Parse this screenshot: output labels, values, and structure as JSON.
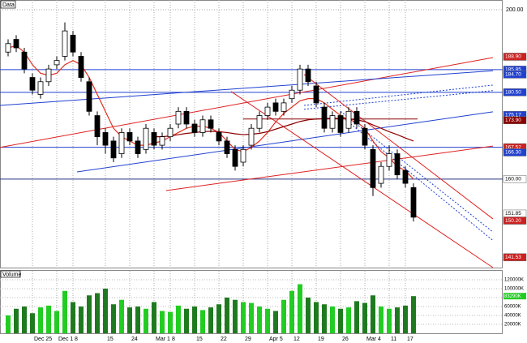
{
  "chart_data": {
    "type": "candlestick",
    "title": "Data",
    "volume_title": "Volume",
    "categories": [
      null,
      null,
      null,
      "Dec 25",
      null,
      null,
      "Dec 1",
      null,
      "8",
      null,
      null,
      null,
      "15",
      null,
      null,
      "24",
      null,
      null,
      "Mar 1",
      null,
      "8",
      null,
      null,
      "15",
      null,
      null,
      "22",
      null,
      null,
      "29",
      null,
      null,
      "Apr 5",
      null,
      null,
      "12",
      null,
      null,
      "19",
      null,
      null,
      "26",
      null,
      null,
      "Mar 4",
      null,
      null,
      "11",
      null,
      "17",
      null
    ],
    "open": [
      190,
      193,
      190,
      184,
      180,
      183,
      187,
      189,
      194,
      189,
      183,
      175,
      171,
      169,
      166,
      171,
      169,
      167,
      171,
      168,
      170,
      173,
      176,
      173,
      171,
      174,
      171,
      169,
      167,
      164,
      168,
      172,
      175,
      178,
      176,
      179,
      181,
      186,
      182,
      177,
      172,
      175,
      172,
      176,
      172,
      167,
      159,
      163,
      166,
      162,
      158
    ],
    "high": [
      193,
      194,
      191,
      185,
      184,
      187,
      189,
      197,
      195,
      190,
      184,
      176,
      172,
      170,
      172,
      172,
      170,
      173,
      172,
      171,
      173,
      177,
      177,
      174,
      175,
      175,
      172,
      170,
      168,
      168,
      173,
      176,
      178,
      179,
      179,
      182,
      187,
      187,
      183,
      178,
      176,
      176,
      177,
      177,
      173,
      168,
      164,
      168,
      167,
      163,
      159
    ],
    "low": [
      189,
      190,
      185,
      180,
      179,
      182,
      186,
      188,
      189,
      183,
      175,
      168,
      166,
      164,
      165,
      168,
      165,
      166,
      167,
      167,
      169,
      172,
      172,
      170,
      170,
      171,
      168,
      165,
      162,
      163,
      167,
      171,
      174,
      175,
      175,
      178,
      180,
      182,
      177,
      171,
      171,
      170,
      171,
      172,
      167,
      156,
      158,
      162,
      160,
      158,
      150
    ],
    "close": [
      192,
      191,
      186,
      181,
      183,
      186,
      188,
      195,
      190,
      184,
      176,
      170,
      168,
      165,
      171,
      169,
      166,
      172,
      168,
      170,
      172,
      176,
      173,
      171,
      174,
      172,
      169,
      166,
      163,
      167,
      172,
      175,
      177,
      176,
      178,
      181,
      186,
      183,
      178,
      172,
      175,
      171,
      176,
      173,
      168,
      158,
      163,
      166,
      161,
      159,
      151
    ],
    "volume": [
      40000,
      55000,
      60000,
      45000,
      58000,
      62000,
      50000,
      95000,
      70000,
      60000,
      85000,
      90000,
      100000,
      65000,
      75000,
      58000,
      60000,
      55000,
      70000,
      50000,
      48000,
      62000,
      55000,
      60000,
      52000,
      58000,
      65000,
      80000,
      75000,
      70000,
      68000,
      60000,
      55000,
      50000,
      75000,
      95000,
      110000,
      80000,
      70000,
      65000,
      60000,
      55000,
      58000,
      72000,
      68000,
      85000,
      60000,
      55000,
      58000,
      62000,
      83290
    ],
    "volume_last_label": "83290K",
    "up_color": "#ffffff",
    "down_color": "#000000",
    "volume_up_color": "#22cc22",
    "volume_down_color": "#1f7a1f",
    "ylim": [
      139.1,
      202.3
    ],
    "yticks": [
      {
        "value": 200,
        "label": "200.00"
      }
    ],
    "volume_lim": [
      0,
      140000
    ],
    "volume_ticks": [
      {
        "value": 120000,
        "label": "120000K"
      },
      {
        "value": 100000,
        "label": "100000K"
      },
      {
        "value": 80000,
        "label": "80000K"
      },
      {
        "value": 60000,
        "label": "60000K"
      },
      {
        "value": 40000,
        "label": "40000K"
      },
      {
        "value": 20000,
        "label": "20000K"
      }
    ],
    "grid": true,
    "moving_averages": [
      {
        "color": "#e03020",
        "values": [
          191,
          191.5,
          190,
          187,
          185,
          184.5,
          185,
          187,
          188,
          187,
          184,
          180,
          176,
          172,
          170,
          169,
          168,
          168,
          168.5,
          169,
          170,
          171,
          172,
          172.5,
          172.5,
          172,
          171,
          169,
          167,
          166.5,
          167.5,
          169,
          171,
          173.5,
          175.5,
          177,
          178.5,
          179,
          179,
          178,
          176.5,
          175,
          174,
          173.5,
          172,
          169,
          166.5,
          165,
          163,
          162,
          160
        ]
      },
      {
        "color": "#8b0000",
        "values": [
          null,
          null,
          null,
          null,
          null,
          null,
          null,
          null,
          null,
          null,
          null,
          null,
          null,
          null,
          null,
          null,
          null,
          null,
          170,
          170,
          170.2,
          170.5,
          170.8,
          171,
          171.2,
          171.3,
          171.2,
          171,
          170.7,
          170.5,
          170.6,
          170.8,
          171.2,
          171.8,
          172.4,
          173,
          173.6,
          174,
          174.2,
          174.3,
          174.4,
          174.3,
          174.2,
          174,
          173.6,
          172.8,
          172,
          171.2,
          170.5,
          169.7,
          169
        ]
      }
    ],
    "trendlines": [
      {
        "x": [
          -1,
          59.8
        ],
        "y": [
          167.5,
          188.7
        ],
        "color": "#e02020",
        "dash": false
      },
      {
        "x": [
          -1,
          59.8
        ],
        "y": [
          177.4,
          185.6
        ],
        "color": "#2040d0",
        "dash": false
      },
      {
        "x": [
          8.5,
          59.8
        ],
        "y": [
          161.7,
          175.9
        ],
        "color": "#2040d0",
        "dash": false
      },
      {
        "x": [
          19.5,
          59.8
        ],
        "y": [
          157.3,
          167.8
        ],
        "color": "#e02020",
        "dash": false
      },
      {
        "x": [
          36.5,
          59.8
        ],
        "y": [
          177.4,
          182.2
        ],
        "color": "#2040d0",
        "dash": true
      },
      {
        "x": [
          36.5,
          59.8
        ],
        "y": [
          176.5,
          180.9
        ],
        "color": "#2040d0",
        "dash": true
      },
      {
        "x": [
          36.5,
          59.8
        ],
        "y": [
          184.7,
          150.6
        ],
        "color": "#e02020",
        "dash": false
      },
      {
        "x": [
          27.5,
          59.8
        ],
        "y": [
          180.7,
          139.1
        ],
        "color": "#e02020",
        "dash": false
      },
      {
        "x": [
          41,
          59.8
        ],
        "y": [
          176,
          147.5
        ],
        "color": "#2040d0",
        "dash": true
      },
      {
        "x": [
          41,
          59.8
        ],
        "y": [
          175,
          145.5
        ],
        "color": "#2040d0",
        "dash": true
      },
      {
        "x": [
          29,
          50.5
        ],
        "y": [
          174.2,
          174.2
        ],
        "color": "#8b0000",
        "dash": false
      }
    ],
    "markers": [
      {
        "value": 188.9,
        "label": "188.90",
        "color": "#cc2020",
        "text_color": "#ffffff"
      },
      {
        "value": 185.85,
        "label": "185.85",
        "color": "#2040d0",
        "text_color": "#ffffff",
        "line_color": "#2040d0"
      },
      {
        "value": 184.7,
        "label": "184.70",
        "color": "#2040d0",
        "text_color": "#ffffff"
      },
      {
        "value": 180.5,
        "label": "180.50",
        "color": "#2040d0",
        "text_color": "#ffffff",
        "line_color": "#2040d0"
      },
      {
        "value": 175.17,
        "label": "175.17",
        "color": "#2040d0",
        "text_color": "#ffffff"
      },
      {
        "value": 173.9,
        "label": "173.90",
        "color": "#8b0000",
        "text_color": "#ffffff"
      },
      {
        "value": 167.52,
        "label": "167.52",
        "color": "#cc2020",
        "text_color": "#ffffff",
        "line_color": "#2040d0"
      },
      {
        "value": 166.3,
        "label": "166.30",
        "color": "#2040d0",
        "text_color": "#ffffff"
      },
      {
        "value": 160,
        "label": "160.00",
        "color": "#ffffff",
        "text_color": "#000000",
        "line_color": "#203080"
      },
      {
        "value": 151.85,
        "label": "151.85",
        "color": "#ffffff",
        "text_color": "#000000"
      },
      {
        "value": 150.2,
        "label": "150.20",
        "color": "#cc2020",
        "text_color": "#ffffff"
      },
      {
        "value": 141.53,
        "label": "141.53",
        "color": "#cc2020",
        "text_color": "#ffffff"
      }
    ]
  }
}
